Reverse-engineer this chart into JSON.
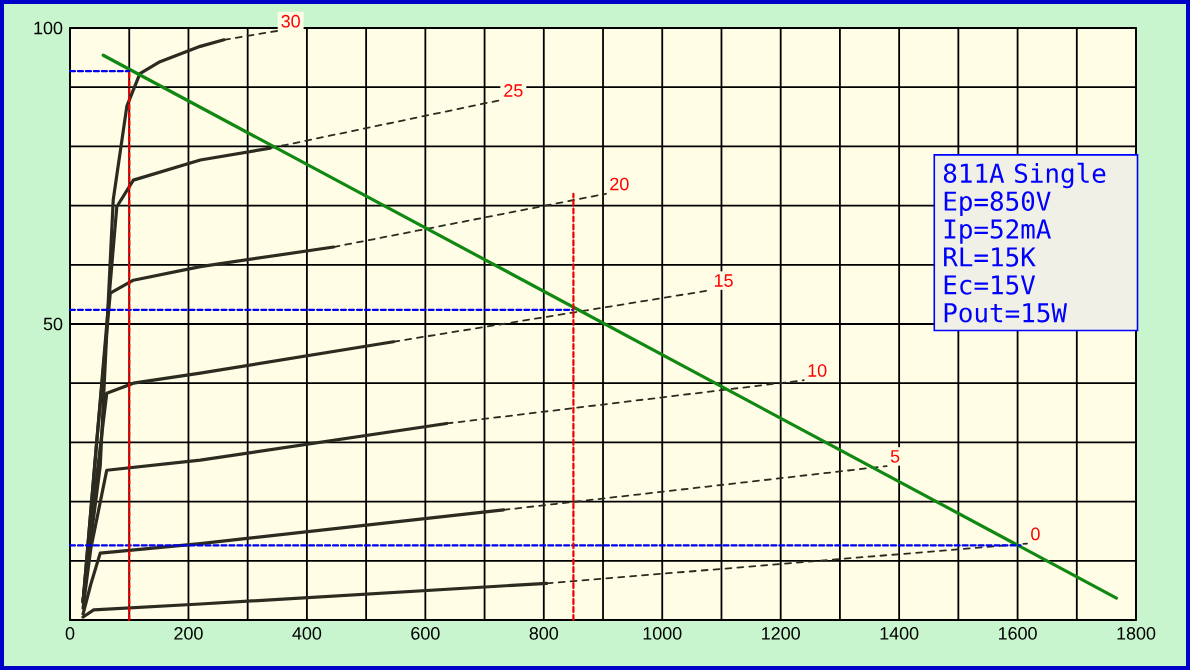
{
  "chart_data": {
    "type": "line",
    "grid": true,
    "xlim": [
      0,
      1800
    ],
    "ylim": [
      0,
      100
    ],
    "xticks": [
      0,
      {
        "value": 100,
        "label": null
      },
      200,
      {
        "value": 300,
        "label": null
      },
      400,
      {
        "value": 500,
        "label": null
      },
      600,
      {
        "value": 700,
        "label": null
      },
      800,
      {
        "value": 900,
        "label": null
      },
      1000,
      {
        "value": 1100,
        "label": null
      },
      1200,
      {
        "value": 1300,
        "label": null
      },
      1400,
      {
        "value": 1500,
        "label": null
      },
      1600,
      {
        "value": 1700,
        "label": null
      },
      1800
    ],
    "yticks": [
      {
        "value": 0,
        "label": null
      },
      {
        "value": 10,
        "label": null
      },
      {
        "value": 20,
        "label": null
      },
      {
        "value": 30,
        "label": null
      },
      {
        "value": 40,
        "label": null
      },
      50,
      {
        "value": 60,
        "label": null
      },
      {
        "value": 70,
        "label": null
      },
      {
        "value": 80,
        "label": null
      },
      {
        "value": 90,
        "label": null
      },
      100
    ],
    "series": [
      {
        "color": "#2b2b20",
        "line_style": "solid",
        "x": [
          22,
          51,
          73,
          96,
          118,
          152,
          220,
          260
        ],
        "values": [
          3.4,
          26,
          71,
          86.8,
          92.3,
          94.3,
          96.9,
          98
        ]
      },
      {
        "name": "30",
        "color": "#2b2b20",
        "line_style": "dashed",
        "x": [
          260,
          350
        ],
        "values": [
          98,
          99.5
        ]
      },
      {
        "color": "#2b2b20",
        "line_style": "solid",
        "x": [
          22,
          51,
          79,
          107,
          220,
          338
        ],
        "values": [
          3,
          37,
          69.8,
          74.3,
          77.7,
          79.7
        ]
      },
      {
        "name": "25",
        "color": "#2b2b20",
        "line_style": "dashed",
        "x": [
          338,
          726
        ],
        "values": [
          79.7,
          87.8
        ]
      },
      {
        "color": "#2b2b20",
        "line_style": "solid",
        "x": [
          22,
          45,
          68,
          107,
          220,
          445
        ],
        "values": [
          3,
          30,
          55.2,
          57.4,
          59.7,
          63
        ]
      },
      {
        "name": "20",
        "color": "#2b2b20",
        "line_style": "dashed",
        "x": [
          445,
          905
        ],
        "values": [
          63,
          72
        ]
      },
      {
        "color": "#2b2b20",
        "line_style": "solid",
        "x": [
          22,
          40,
          62,
          107,
          220,
          546
        ],
        "values": [
          3,
          20,
          38.3,
          40,
          41.7,
          47
        ]
      },
      {
        "name": "15",
        "color": "#2b2b20",
        "line_style": "dashed",
        "x": [
          546,
          1081
        ],
        "values": [
          47,
          55.7
        ]
      },
      {
        "color": "#2b2b20",
        "line_style": "solid",
        "x": [
          22,
          35,
          62,
          220,
          636
        ],
        "values": [
          2,
          12,
          25.3,
          27,
          33.2
        ]
      },
      {
        "name": "10",
        "color": "#2b2b20",
        "line_style": "dashed",
        "x": [
          636,
          1239
        ],
        "values": [
          33.2,
          40.5
        ]
      },
      {
        "color": "#2b2b20",
        "line_style": "solid",
        "x": [
          22,
          35,
          51,
          220,
          732
        ],
        "values": [
          1,
          6,
          11.3,
          12.9,
          18.6
        ]
      },
      {
        "name": "5",
        "color": "#2b2b20",
        "line_style": "dashed",
        "x": [
          732,
          1379
        ],
        "values": [
          18.6,
          26
        ]
      },
      {
        "color": "#2b2b20",
        "line_style": "solid",
        "x": [
          22,
          40,
          220,
          805
        ],
        "values": [
          0.5,
          1.7,
          2.7,
          6.2
        ]
      },
      {
        "name": "0",
        "color": "#2b2b20",
        "line_style": "dashed",
        "x": [
          805,
          1616
        ],
        "values": [
          6.2,
          12.9
        ]
      },
      {
        "color": "#118811",
        "line_style": "solid",
        "x": [
          56,
          1767
        ],
        "values": [
          95.4,
          3.7
        ]
      },
      {
        "color": "#0000ee",
        "line_style": "dotted",
        "x": [
          0,
          100
        ],
        "values": [
          92.7,
          92.7
        ]
      },
      {
        "color": "#0000ee",
        "line_style": "dotted",
        "x": [
          0,
          850
        ],
        "values": [
          52.4,
          52.4
        ]
      },
      {
        "color": "#0000ee",
        "line_style": "dotted",
        "x": [
          0,
          1605
        ],
        "values": [
          12.6,
          12.6
        ]
      },
      {
        "color": "#ee0000",
        "line_style": "dotted",
        "x": [
          100,
          100
        ],
        "values": [
          0,
          92.7
        ]
      },
      {
        "color": "#ee0000",
        "line_style": "dotted",
        "x": [
          850,
          850
        ],
        "values": [
          0,
          72
        ]
      }
    ],
    "annotations": [
      "811A Single",
      "Ep=850V",
      "Ip=52mA",
      "RL=15K",
      "Ec=15V",
      "Pout=15W"
    ]
  }
}
